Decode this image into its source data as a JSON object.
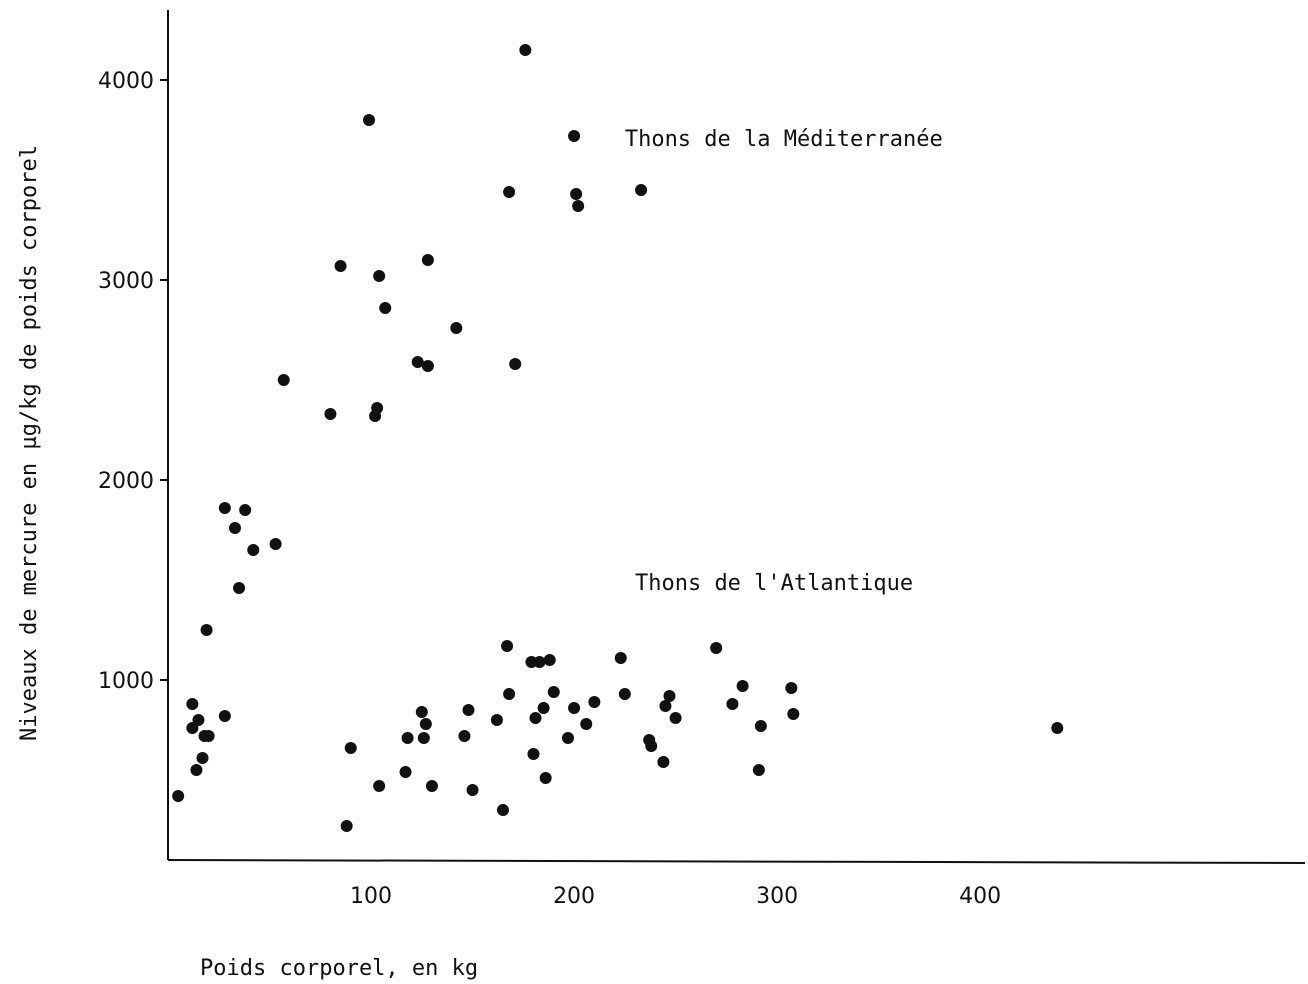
{
  "chart_data": {
    "type": "scatter",
    "xlabel": "Poids corporel, en kg",
    "ylabel": "Niveaux de mercure en µg/kg de poids corporel",
    "xlim": [
      0,
      560
    ],
    "ylim": [
      100,
      4350
    ],
    "x_ticks": [
      100,
      200,
      300,
      400
    ],
    "y_ticks": [
      1000,
      2000,
      3000,
      4000
    ],
    "x_tick_labels": [
      "100",
      "200",
      "300",
      "400"
    ],
    "y_tick_labels": [
      "1000",
      "2000",
      "3000",
      "4000"
    ],
    "grid": false,
    "legend": "none",
    "annotations": [
      {
        "text": "Thons de la Méditerranée",
        "x": 225,
        "y": 3670
      },
      {
        "text": "Thons de l'Atlantique",
        "x": 230,
        "y": 1450
      }
    ],
    "series": [
      {
        "name": "Thons de la Méditerranée",
        "x": [
          28,
          33,
          38,
          35,
          42,
          53,
          57,
          80,
          85,
          102,
          103,
          104,
          107,
          123,
          128,
          128,
          142,
          99,
          171,
          168,
          176,
          200,
          201,
          202,
          233
        ],
        "y": [
          1860,
          1760,
          1850,
          1460,
          1650,
          1680,
          2500,
          2330,
          3070,
          2320,
          2360,
          3020,
          2860,
          2590,
          2570,
          3100,
          2760,
          3800,
          2580,
          3440,
          4150,
          3720,
          3430,
          3370,
          3450
        ]
      },
      {
        "name": "Thons de l'Atlantique",
        "x": [
          5,
          12,
          12,
          14,
          15,
          17,
          18,
          19,
          28,
          20,
          88,
          90,
          104,
          117,
          118,
          125,
          126,
          127,
          130,
          146,
          148,
          150,
          162,
          165,
          167,
          168,
          179,
          180,
          181,
          183,
          185,
          186,
          188,
          190,
          197,
          200,
          206,
          210,
          223,
          225,
          237,
          238,
          244,
          245,
          247,
          250,
          270,
          278,
          283,
          291,
          292,
          307,
          308,
          438
        ],
        "y": [
          420,
          880,
          760,
          550,
          800,
          610,
          720,
          1250,
          820,
          720,
          270,
          660,
          470,
          540,
          710,
          840,
          710,
          780,
          470,
          720,
          850,
          450,
          800,
          350,
          1170,
          930,
          1090,
          630,
          810,
          1090,
          860,
          510,
          1100,
          940,
          710,
          860,
          780,
          890,
          1110,
          930,
          700,
          670,
          590,
          870,
          920,
          810,
          1160,
          880,
          970,
          550,
          770,
          960,
          830,
          760
        ]
      }
    ]
  }
}
